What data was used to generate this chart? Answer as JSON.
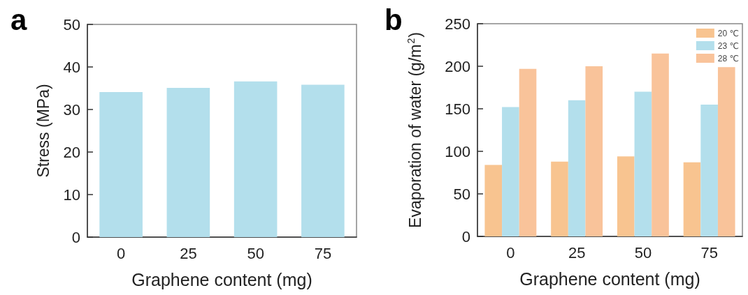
{
  "chart_data": [
    {
      "type": "bar",
      "title": "a",
      "xlabel": "Graphene content (mg)",
      "ylabel": "Stress (MPa)",
      "categories": [
        "0",
        "25",
        "50",
        "75"
      ],
      "values": [
        34.1,
        35.1,
        36.6,
        35.8
      ],
      "color": "#b3dfec",
      "ylim": [
        0,
        50
      ],
      "yticks": [
        0,
        10,
        20,
        30,
        40,
        50
      ],
      "grid": false,
      "legend": false
    },
    {
      "type": "bar",
      "title": "b",
      "xlabel": "Graphene content (mg)",
      "ylabel": "Evaporation of water (g/m$^{2}$)",
      "categories": [
        "0",
        "25",
        "50",
        "75"
      ],
      "series": [
        {
          "name": "20 ℃",
          "color": "#f8c490",
          "values": [
            84,
            88,
            94,
            87
          ]
        },
        {
          "name": "23 ℃",
          "color": "#b3dfec",
          "values": [
            152,
            160,
            170,
            155
          ]
        },
        {
          "name": "28 ℃",
          "color": "#f9c39a",
          "values": [
            197,
            200,
            215,
            199
          ]
        }
      ],
      "ylim": [
        0,
        250
      ],
      "yticks": [
        0,
        50,
        100,
        150,
        200,
        250
      ],
      "grid": false,
      "legend": "top right"
    }
  ]
}
